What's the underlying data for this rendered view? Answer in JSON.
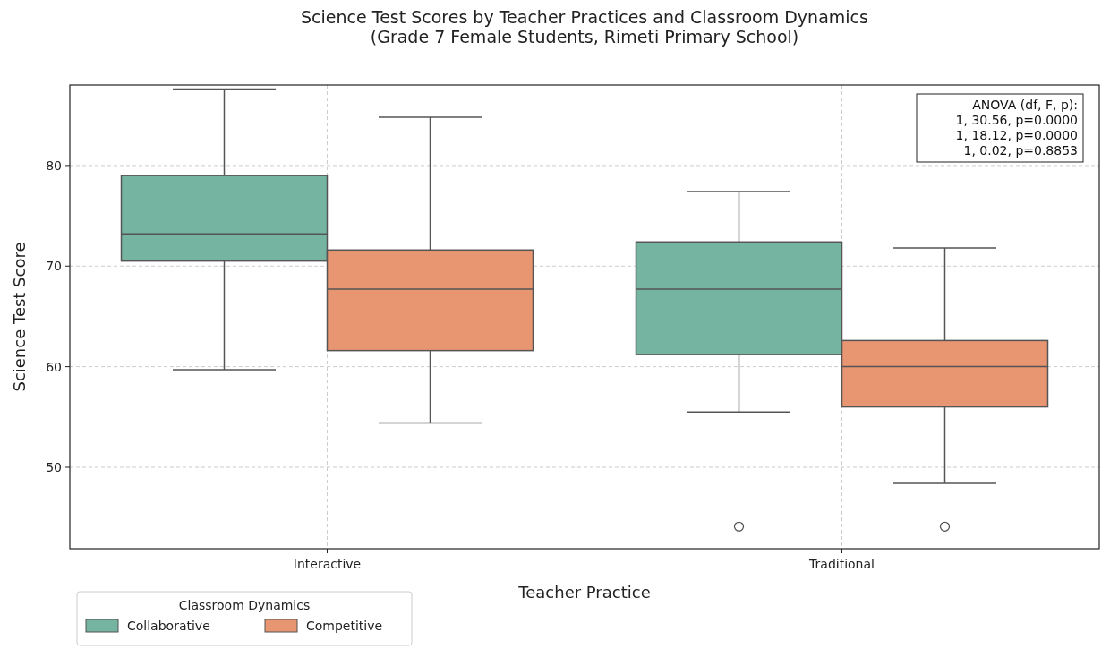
{
  "chart_data": {
    "type": "box",
    "title": "Science Test Scores by Teacher Practices and Classroom Dynamics\n(Grade 7 Female Students, Rimeti Primary School)",
    "xlabel": "Teacher Practice",
    "ylabel": "Science Test Score",
    "legend_title": "Classroom Dynamics",
    "categories": [
      "Interactive",
      "Traditional"
    ],
    "series": [
      {
        "name": "Collaborative",
        "color": "#74b4a0",
        "boxes": [
          {
            "low": 59.7,
            "q1": 70.5,
            "median": 73.2,
            "q3": 79.0,
            "high": 87.6
          },
          {
            "low": 55.5,
            "q1": 61.2,
            "median": 67.7,
            "q3": 72.4,
            "high": 77.4,
            "outliers": [
              44.1
            ]
          }
        ]
      },
      {
        "name": "Competitive",
        "color": "#e89572",
        "boxes": [
          {
            "low": 54.4,
            "q1": 61.6,
            "median": 67.7,
            "q3": 71.6,
            "high": 84.8
          },
          {
            "low": 48.4,
            "q1": 56.0,
            "median": 60.0,
            "q3": 62.6,
            "high": 71.8,
            "outliers": [
              44.1
            ]
          }
        ]
      }
    ],
    "ylim": [
      41.9,
      88.0
    ],
    "yticks": [
      50,
      60,
      70,
      80
    ],
    "grid": true,
    "legend": "bottom left",
    "annotations": [
      "ANOVA (df, F, p):\n1, 30.56, p=0.0000\n1, 18.12, p=0.0000\n1, 0.02, p=0.8853"
    ]
  }
}
